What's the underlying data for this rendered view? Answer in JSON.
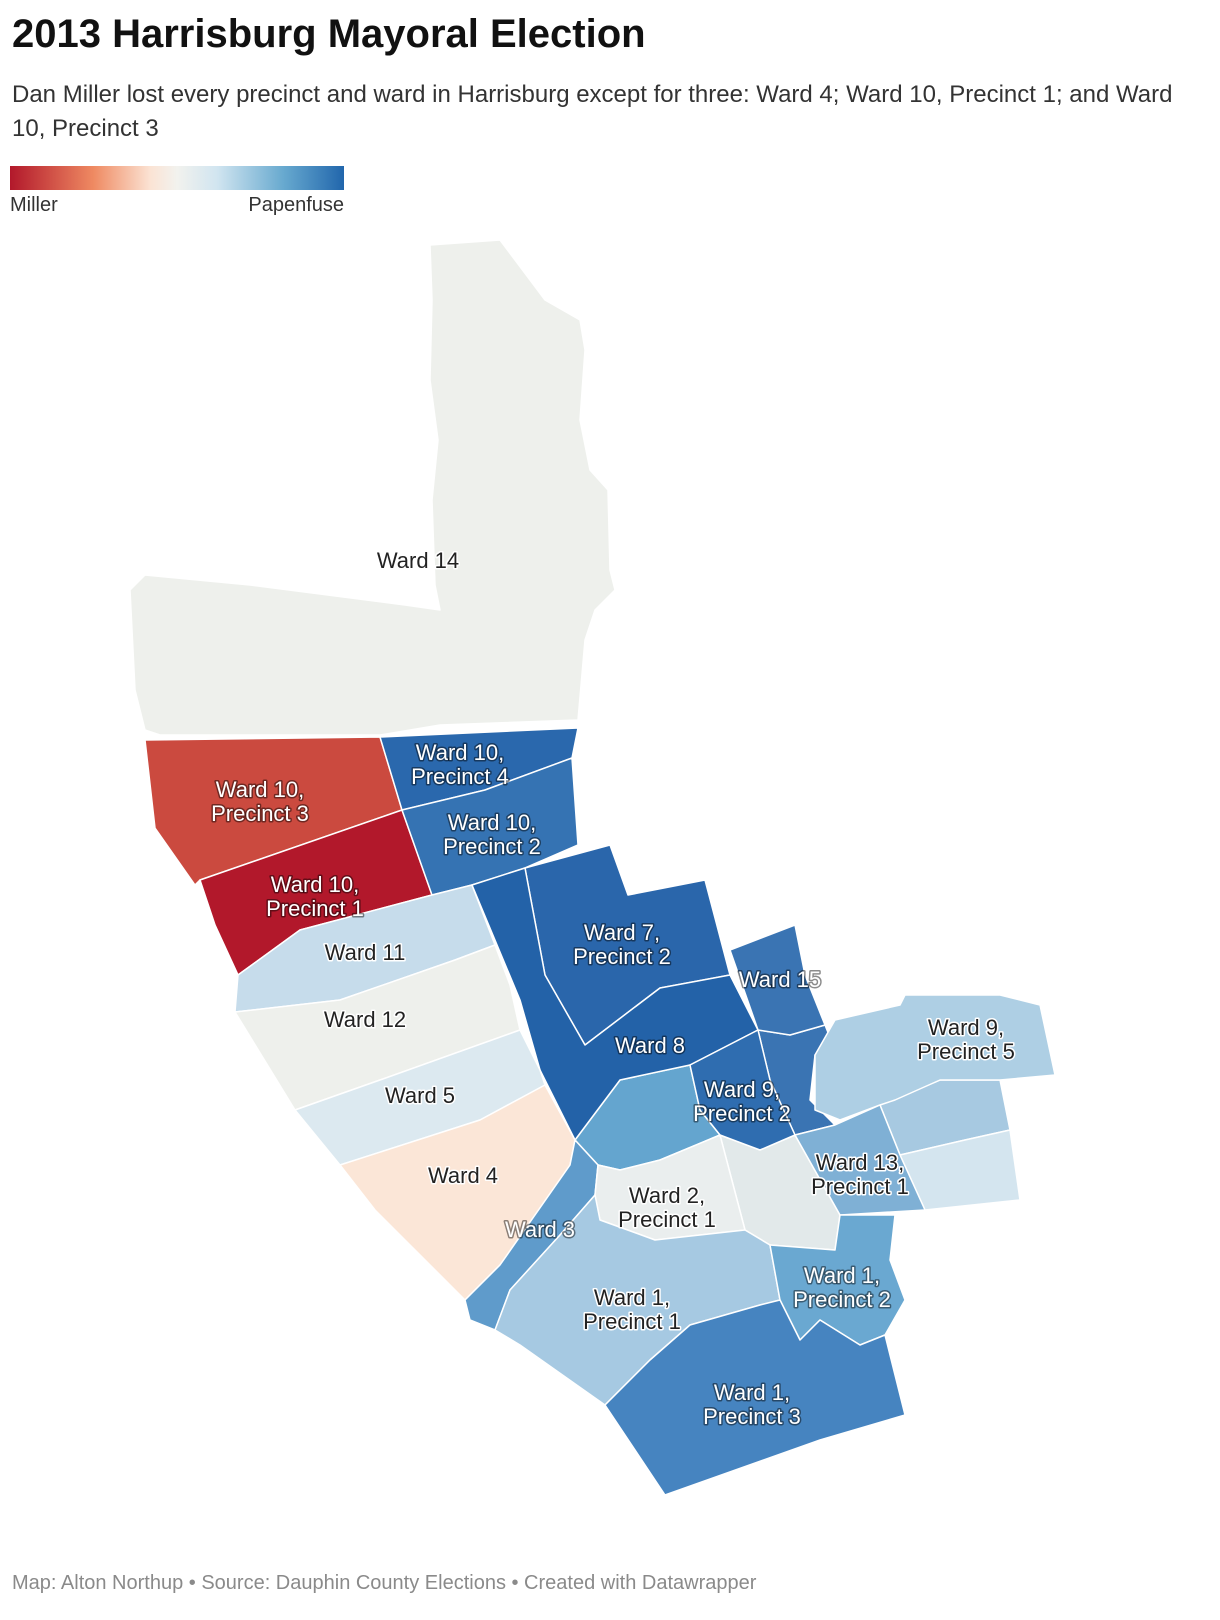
{
  "title": "2013 Harrisburg Mayoral Election",
  "subtitle": "Dan Miller lost every precinct and ward in Harrisburg except for three: Ward 4; Ward 10, Precinct 1; and Ward 10, Precinct 3",
  "legend": {
    "low_label": "Miller",
    "high_label": "Papenfuse",
    "low_color": "#b2182b",
    "mid_color": "#f2f2ee",
    "high_color": "#2166ac"
  },
  "regions": [
    {
      "id": "ward-14",
      "lines": [
        "Ward 14"
      ],
      "color": "#eef0ec"
    },
    {
      "id": "ward-10-p3",
      "lines": [
        "Ward 10,",
        "Precinct 3"
      ],
      "color": "#cb4a3f"
    },
    {
      "id": "ward-10-p1",
      "lines": [
        "Ward 10,",
        "Precinct 1"
      ],
      "color": "#b2182b"
    },
    {
      "id": "ward-10-p4",
      "lines": [
        "Ward 10,",
        "Precinct 4"
      ],
      "color": "#2a68ad"
    },
    {
      "id": "ward-10-p2",
      "lines": [
        "Ward 10,",
        "Precinct 2"
      ],
      "color": "#3573b3"
    },
    {
      "id": "ward-7-p2",
      "lines": [
        "Ward 7,",
        "Precinct 2"
      ],
      "color": "#2a66ab"
    },
    {
      "id": "ward-15",
      "lines": [
        "Ward 15"
      ],
      "color": "#3a74b3"
    },
    {
      "id": "ward-11",
      "lines": [
        "Ward 11"
      ],
      "color": "#c6dceb"
    },
    {
      "id": "ward-12",
      "lines": [
        "Ward 12"
      ],
      "color": "#eef0ec"
    },
    {
      "id": "ward-8",
      "lines": [
        "Ward 8"
      ],
      "color": "#2362a8"
    },
    {
      "id": "ward-5",
      "lines": [
        "Ward 5"
      ],
      "color": "#dce9f0"
    },
    {
      "id": "ward-4",
      "lines": [
        "Ward 4"
      ],
      "color": "#fbe6d7"
    },
    {
      "id": "ward-9-p2",
      "lines": [
        "Ward 9,",
        "Precinct 2"
      ],
      "color": "#2f6db0"
    },
    {
      "id": "ward-9-p5",
      "lines": [
        "Ward 9,",
        "Precinct 5"
      ],
      "color": "#aecfe4"
    },
    {
      "id": "ward-13-p1",
      "lines": [
        "Ward 13,",
        "Precinct 1"
      ],
      "color": "#7fb0d5"
    },
    {
      "id": "ward-3",
      "lines": [
        "Ward 3"
      ],
      "color": "#5f9bcb"
    },
    {
      "id": "ward-2-p1",
      "lines": [
        "Ward 2,",
        "Precinct 1"
      ],
      "color": "#eaeeee"
    },
    {
      "id": "ward-1-p1",
      "lines": [
        "Ward 1,",
        "Precinct 1"
      ],
      "color": "#a6c9e2"
    },
    {
      "id": "ward-1-p2",
      "lines": [
        "Ward 1,",
        "Precinct 2"
      ],
      "color": "#6aa8d1"
    },
    {
      "id": "ward-1-p3",
      "lines": [
        "Ward 1,",
        "Precinct 3"
      ],
      "color": "#4684c0"
    }
  ],
  "extra_regions": [
    {
      "id": "ward-9-other",
      "color": "#64a5cf"
    },
    {
      "id": "ward-13-other-a",
      "color": "#a7c9e1"
    },
    {
      "id": "ward-13-other-b",
      "color": "#d4e5ef"
    },
    {
      "id": "ward-2-other",
      "color": "#e2e9ea"
    },
    {
      "id": "ward-15-other",
      "color": "#3a74b3"
    }
  ],
  "footer": "Map: Alton Northup • Source: Dauphin County Elections • Created with Datawrapper"
}
